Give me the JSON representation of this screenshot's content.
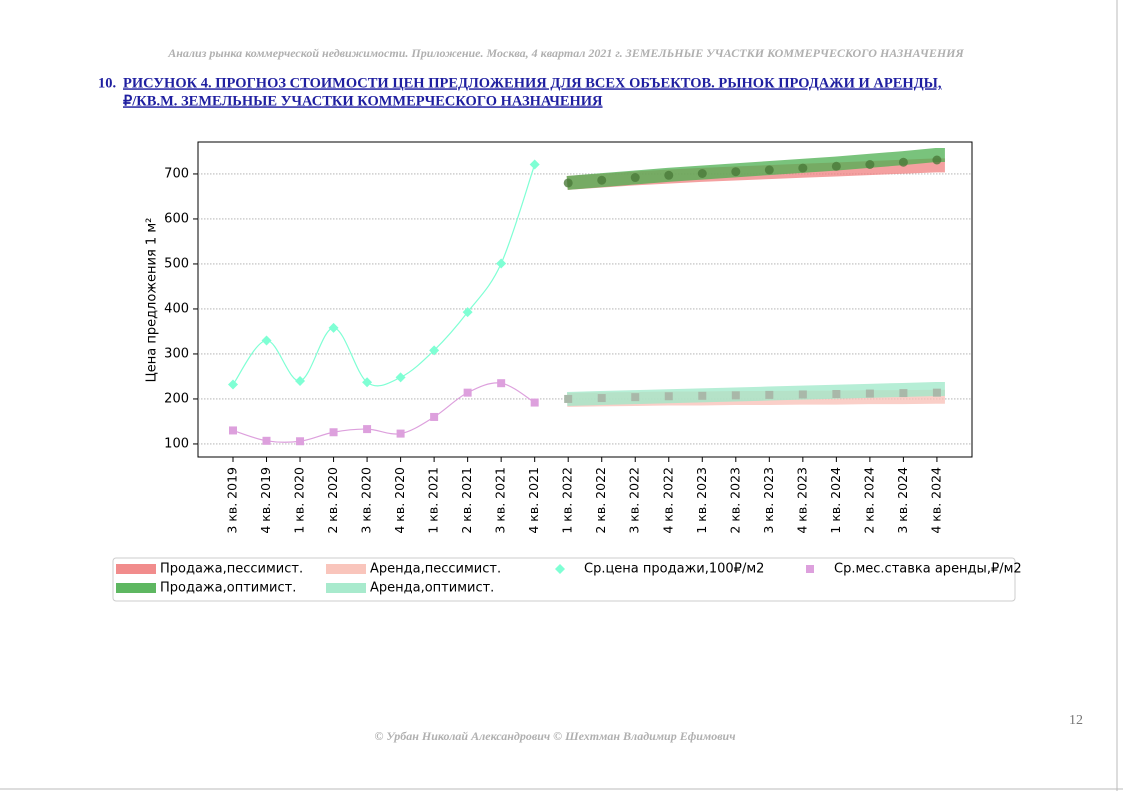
{
  "header": {
    "text": "Анализ рынка коммерческой недвижимости. Приложение.  Москва,  4 квартал 2021 г.  ЗЕМЕЛЬНЫЕ УЧАСТКИ КОММЕРЧЕСКОГО НАЗНАЧЕНИЯ"
  },
  "heading": {
    "number": "10.",
    "line1": "РИСУНОК 4. ПРОГНОЗ СТОИМОСТИ ЦЕН ПРЕДЛОЖЕНИЯ ДЛЯ ВСЕХ ОБЪЕКТОВ. РЫНОК ПРОДАЖИ И АРЕНДЫ,",
    "line2": "₽/КВ.М. ЗЕМЕЛЬНЫЕ УЧАСТКИ КОММЕРЧЕСКОГО НАЗНАЧЕНИЯ"
  },
  "chart_data": {
    "type": "scatter",
    "y_label": "Цена предложения 1 м²",
    "categories": [
      "3 кв. 2019",
      "4 кв. 2019",
      "1 кв. 2020",
      "2 кв. 2020",
      "3 кв. 2020",
      "4 кв. 2020",
      "1 кв. 2021",
      "2 кв. 2021",
      "3 кв. 2021",
      "4 кв. 2021",
      "1 кв. 2022",
      "2 кв. 2022",
      "3 кв. 2022",
      "4 кв. 2022",
      "1 кв. 2023",
      "2 кв. 2023",
      "3 кв. 2023",
      "4 кв. 2023",
      "1 кв. 2024",
      "2 кв. 2024",
      "3 кв. 2024",
      "4 кв. 2024"
    ],
    "ylim": [
      71,
      771
    ],
    "yticks": [
      100,
      200,
      300,
      400,
      500,
      600,
      700
    ],
    "grid": true,
    "series": [
      {
        "name": "Продажа,пессимист.",
        "style": "band",
        "color": "#f08080",
        "values": [
          null,
          null,
          null,
          null,
          null,
          null,
          null,
          null,
          null,
          null,
          680,
          685,
          690,
          694,
          698,
          701,
          704,
          707,
          710,
          713,
          716,
          719
        ]
      },
      {
        "name": "Продажа,оптимист.",
        "style": "band",
        "color": "#4caf50",
        "values": [
          null,
          null,
          null,
          null,
          null,
          null,
          null,
          null,
          null,
          null,
          680,
          686,
          692,
          698,
          703,
          708,
          713,
          718,
          723,
          729,
          735,
          742
        ]
      },
      {
        "name": "Аренда,пессимист.",
        "style": "band",
        "color": "#f8bfb5",
        "values": [
          null,
          null,
          null,
          null,
          null,
          null,
          null,
          null,
          null,
          null,
          198,
          199,
          200,
          201,
          201,
          202,
          202,
          203,
          203,
          204,
          204,
          205
        ]
      },
      {
        "name": "Аренда,оптимист.",
        "style": "band",
        "color": "#9ee8c8",
        "values": [
          null,
          null,
          null,
          null,
          null,
          null,
          null,
          null,
          null,
          null,
          200,
          202,
          204,
          206,
          208,
          210,
          212,
          214,
          216,
          218,
          220,
          222
        ]
      },
      {
        "name": "Ср.цена продажи,100₽/м2",
        "style": "marker",
        "marker": "diamond",
        "line": true,
        "color": "#7fffd4",
        "values": [
          232,
          330,
          240,
          358,
          237,
          248,
          308,
          393,
          501,
          721,
          null,
          null,
          null,
          null,
          null,
          null,
          null,
          null,
          null,
          null,
          null,
          null
        ]
      },
      {
        "name": "Ср.мес.ставка аренды,₽/м2",
        "style": "marker",
        "marker": "square",
        "line": true,
        "color": "#dda0dd",
        "values": [
          130,
          107,
          106,
          126,
          133,
          123,
          160,
          214,
          235,
          192,
          null,
          null,
          null,
          null,
          null,
          null,
          null,
          null,
          null,
          null,
          null,
          null
        ]
      },
      {
        "style": "marker",
        "marker": "circle",
        "color": "#4b7a3a",
        "values": [
          null,
          null,
          null,
          null,
          null,
          null,
          null,
          null,
          null,
          null,
          680,
          686,
          692,
          697,
          701,
          705,
          709,
          713,
          717,
          721,
          726,
          731
        ]
      },
      {
        "style": "marker",
        "marker": "square",
        "color": "#a9b8a9",
        "values": [
          null,
          null,
          null,
          null,
          null,
          null,
          null,
          null,
          null,
          null,
          200,
          202,
          204,
          206,
          207,
          208,
          209,
          210,
          211,
          212,
          213,
          214
        ]
      }
    ]
  },
  "footer": {
    "text": "© Урбан Николай Александрович   © Шехтман Владимир Ефимович"
  },
  "page_number": "12"
}
